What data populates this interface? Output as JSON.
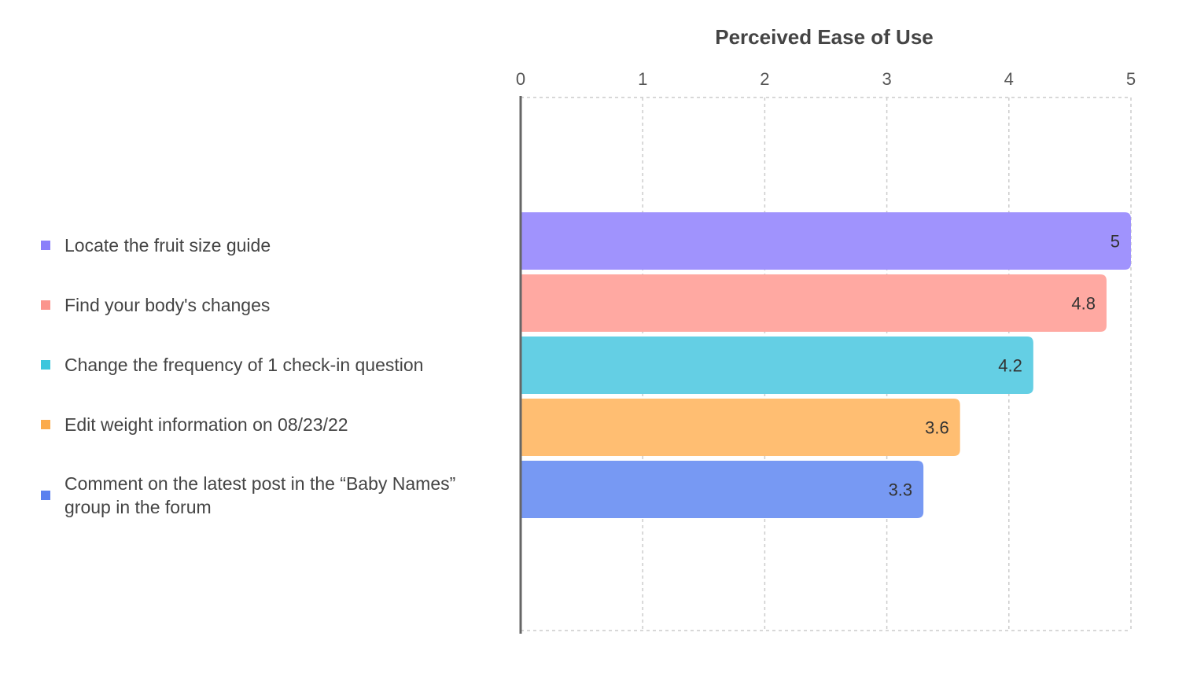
{
  "chart_data": {
    "type": "bar",
    "orientation": "horizontal",
    "title": "Perceived Ease of Use",
    "xlabel": "",
    "ylabel": "",
    "xlim": [
      0,
      5
    ],
    "ticks": [
      "0",
      "1",
      "2",
      "3",
      "4",
      "5"
    ],
    "grid": true,
    "legend_position": "left",
    "categories": [
      "Locate the fruit size guide",
      "Find your body's changes",
      "Change the frequency of 1 check-in question",
      "Edit weight information on 08/23/22",
      "Comment on the latest post in the “Baby Names” group in the forum"
    ],
    "values": [
      5,
      4.8,
      4.2,
      3.6,
      3.3
    ],
    "value_labels": [
      "5",
      "4.8",
      "4.2",
      "3.6",
      "3.3"
    ],
    "colors": [
      "#a093fd",
      "#ffa9a2",
      "#64cfe4",
      "#ffbe72",
      "#7799f3"
    ],
    "legend_colors": [
      "#8b7ffa",
      "#fb958d",
      "#3dc6dd",
      "#fbab4c",
      "#5b80ef"
    ]
  }
}
